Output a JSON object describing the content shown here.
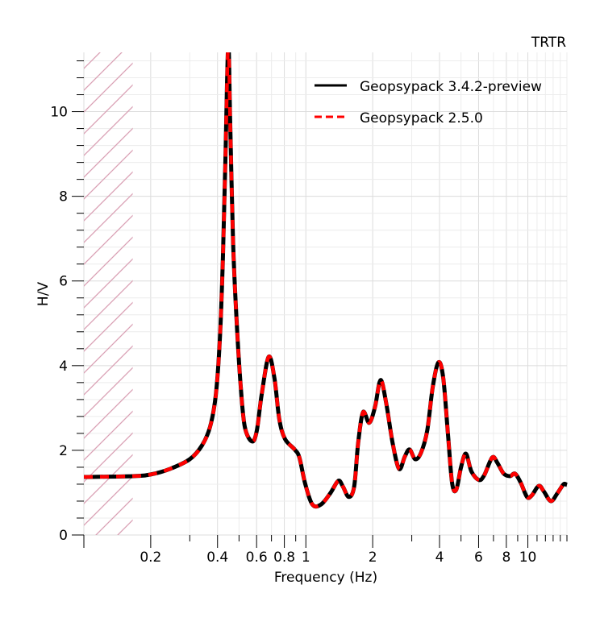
{
  "chart_data": {
    "type": "line",
    "title": "TRTR",
    "xlabel": "Frequency (Hz)",
    "ylabel": "H/V",
    "xscale": "log",
    "xlim": [
      0.1,
      15
    ],
    "ylim": [
      0,
      11.4
    ],
    "grid": true,
    "legend_position": "top-right",
    "x_tick_labels": [
      "0.2",
      "0.4",
      "0.6",
      "0.8",
      "1",
      "2",
      "4",
      "6",
      "8",
      "10"
    ],
    "x_tick_values": [
      0.2,
      0.4,
      0.6,
      0.8,
      1,
      2,
      4,
      6,
      8,
      10
    ],
    "y_tick_labels": [
      "0",
      "2",
      "4",
      "6",
      "8",
      "10"
    ],
    "y_tick_values": [
      0,
      2,
      4,
      6,
      8,
      10
    ],
    "excluded_frequency_range": [
      0.1,
      0.166
    ],
    "series": [
      {
        "name": "Geopsypack 3.4.2-preview",
        "color": "#000000",
        "style": "solid"
      },
      {
        "name": "Geopsypack 2.5.0",
        "color": "#ff0000",
        "style": "dashed"
      }
    ],
    "x": [
      0.1,
      0.166,
      0.2,
      0.244,
      0.3,
      0.34,
      0.37,
      0.393,
      0.41,
      0.423,
      0.434,
      0.447,
      0.456,
      0.47,
      0.488,
      0.509,
      0.531,
      0.572,
      0.601,
      0.632,
      0.68,
      0.722,
      0.759,
      0.805,
      0.89,
      0.935,
      0.992,
      1.07,
      1.17,
      1.29,
      1.4,
      1.47,
      1.56,
      1.65,
      1.72,
      1.81,
      1.93,
      2.05,
      2.17,
      2.3,
      2.46,
      2.63,
      2.79,
      2.93,
      3.11,
      3.3,
      3.52,
      3.73,
      3.96,
      4.16,
      4.37,
      4.56,
      4.76,
      5.0,
      5.26,
      5.57,
      6.02,
      6.36,
      6.91,
      7.28,
      7.78,
      8.32,
      8.75,
      9.28,
      9.91,
      10.4,
      11.2,
      11.8,
      12.7,
      13.6,
      14.5,
      15
    ],
    "y": [
      1.37,
      1.39,
      1.43,
      1.56,
      1.79,
      2.11,
      2.55,
      3.31,
      4.65,
      6.55,
      8.84,
      11.6,
      9.8,
      6.93,
      5.03,
      3.5,
      2.55,
      2.21,
      2.46,
      3.31,
      4.21,
      3.7,
      2.74,
      2.27,
      2.02,
      1.83,
      1.22,
      0.72,
      0.72,
      0.99,
      1.28,
      1.14,
      0.9,
      1.14,
      2.17,
      2.9,
      2.65,
      3.03,
      3.66,
      3.12,
      2.17,
      1.56,
      1.85,
      2.02,
      1.79,
      1.94,
      2.46,
      3.5,
      4.08,
      3.7,
      2.36,
      1.22,
      1.07,
      1.6,
      1.92,
      1.5,
      1.3,
      1.41,
      1.83,
      1.71,
      1.45,
      1.39,
      1.45,
      1.24,
      0.9,
      0.93,
      1.16,
      1.03,
      0.8,
      0.99,
      1.2,
      1.18
    ]
  }
}
